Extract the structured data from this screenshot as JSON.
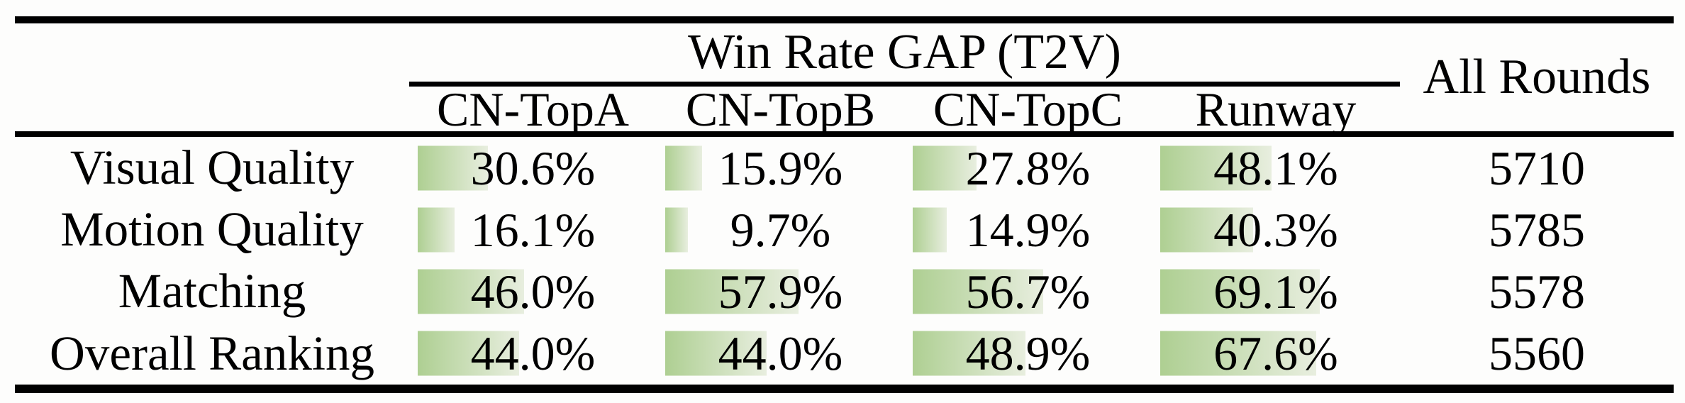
{
  "table": {
    "group_header": "Win Rate GAP (T2V)",
    "all_rounds_header": "All Rounds",
    "model_columns": [
      "CN-TopA",
      "CN-TopB",
      "CN-TopC",
      "Runway"
    ],
    "rows": [
      {
        "label": "Visual Quality",
        "values": [
          "30.6%",
          "15.9%",
          "27.8%",
          "48.1%"
        ],
        "bar_percents": [
          30.6,
          15.9,
          27.8,
          48.1
        ],
        "all_rounds": "5710"
      },
      {
        "label": "Motion Quality",
        "values": [
          "16.1%",
          "9.7%",
          "14.9%",
          "40.3%"
        ],
        "bar_percents": [
          16.1,
          9.7,
          14.9,
          40.3
        ],
        "all_rounds": "5785"
      },
      {
        "label": "Matching",
        "values": [
          "46.0%",
          "57.9%",
          "56.7%",
          "69.1%"
        ],
        "bar_percents": [
          46.0,
          57.9,
          56.7,
          69.1
        ],
        "all_rounds": "5578"
      },
      {
        "label": "Overall Ranking",
        "values": [
          "44.0%",
          "44.0%",
          "48.9%",
          "67.6%"
        ],
        "bar_percents": [
          44.0,
          44.0,
          48.9,
          67.6
        ],
        "all_rounds": "5560"
      }
    ],
    "colors": {
      "bar_gradient_start": "#aecf92",
      "bar_gradient_end": "#e8eedf",
      "rule_color": "#000000"
    }
  },
  "chart_data": {
    "type": "table",
    "title": "Win Rate GAP (T2V)",
    "columns": [
      "CN-TopA",
      "CN-TopB",
      "CN-TopC",
      "Runway",
      "All Rounds"
    ],
    "categories": [
      "Visual Quality",
      "Motion Quality",
      "Matching",
      "Overall Ranking"
    ],
    "series": [
      {
        "name": "CN-TopA",
        "values": [
          30.6,
          16.1,
          46.0,
          44.0
        ],
        "unit": "%"
      },
      {
        "name": "CN-TopB",
        "values": [
          15.9,
          9.7,
          57.9,
          44.0
        ],
        "unit": "%"
      },
      {
        "name": "CN-TopC",
        "values": [
          27.8,
          14.9,
          56.7,
          48.9
        ],
        "unit": "%"
      },
      {
        "name": "Runway",
        "values": [
          48.1,
          40.3,
          69.1,
          67.6
        ],
        "unit": "%"
      },
      {
        "name": "All Rounds",
        "values": [
          5710,
          5785,
          5578,
          5560
        ],
        "unit": "rounds"
      }
    ],
    "bar_scale": "cell-embedded data bars, width proportional to percent, 100% = full cell width",
    "layout": {
      "grid": "off",
      "bars": "left-aligned green gradient"
    }
  }
}
